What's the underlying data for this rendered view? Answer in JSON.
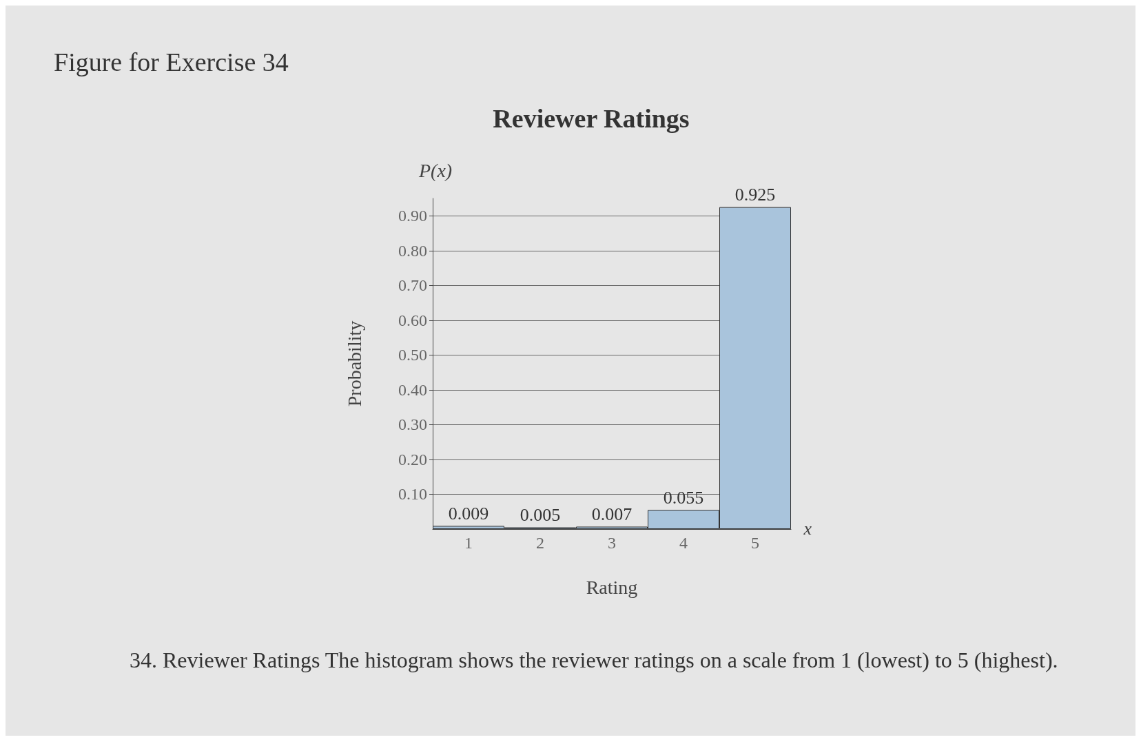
{
  "chart_data": {
    "type": "bar",
    "title": "Reviewer Ratings",
    "xlabel": "Rating",
    "ylabel": "Probability",
    "categories": [
      "1",
      "2",
      "3",
      "4",
      "5"
    ],
    "values": [
      0.009,
      0.005,
      0.007,
      0.055,
      0.925
    ],
    "color": "#a9c4dc",
    "data_labels": true,
    "grid": "y",
    "ylim": [
      0,
      0.95
    ],
    "yticks": [
      {
        "value": 0.1,
        "label": "0.10"
      },
      {
        "value": 0.2,
        "label": "0.20"
      },
      {
        "value": 0.3,
        "label": "0.30"
      },
      {
        "value": 0.4,
        "label": "0.40"
      },
      {
        "value": 0.5,
        "label": "0.50"
      },
      {
        "value": 0.6,
        "label": "0.60"
      },
      {
        "value": 0.7,
        "label": "0.70"
      },
      {
        "value": 0.8,
        "label": "0.80"
      },
      {
        "value": 0.9,
        "label": "0.90"
      }
    ],
    "annotations": [
      "Figure for Exercise 34",
      "P(x)",
      "x",
      "34. Reviewer Ratings The histogram shows the reviewer ratings on a scale from 1 (lowest) to 5 (highest)."
    ]
  }
}
